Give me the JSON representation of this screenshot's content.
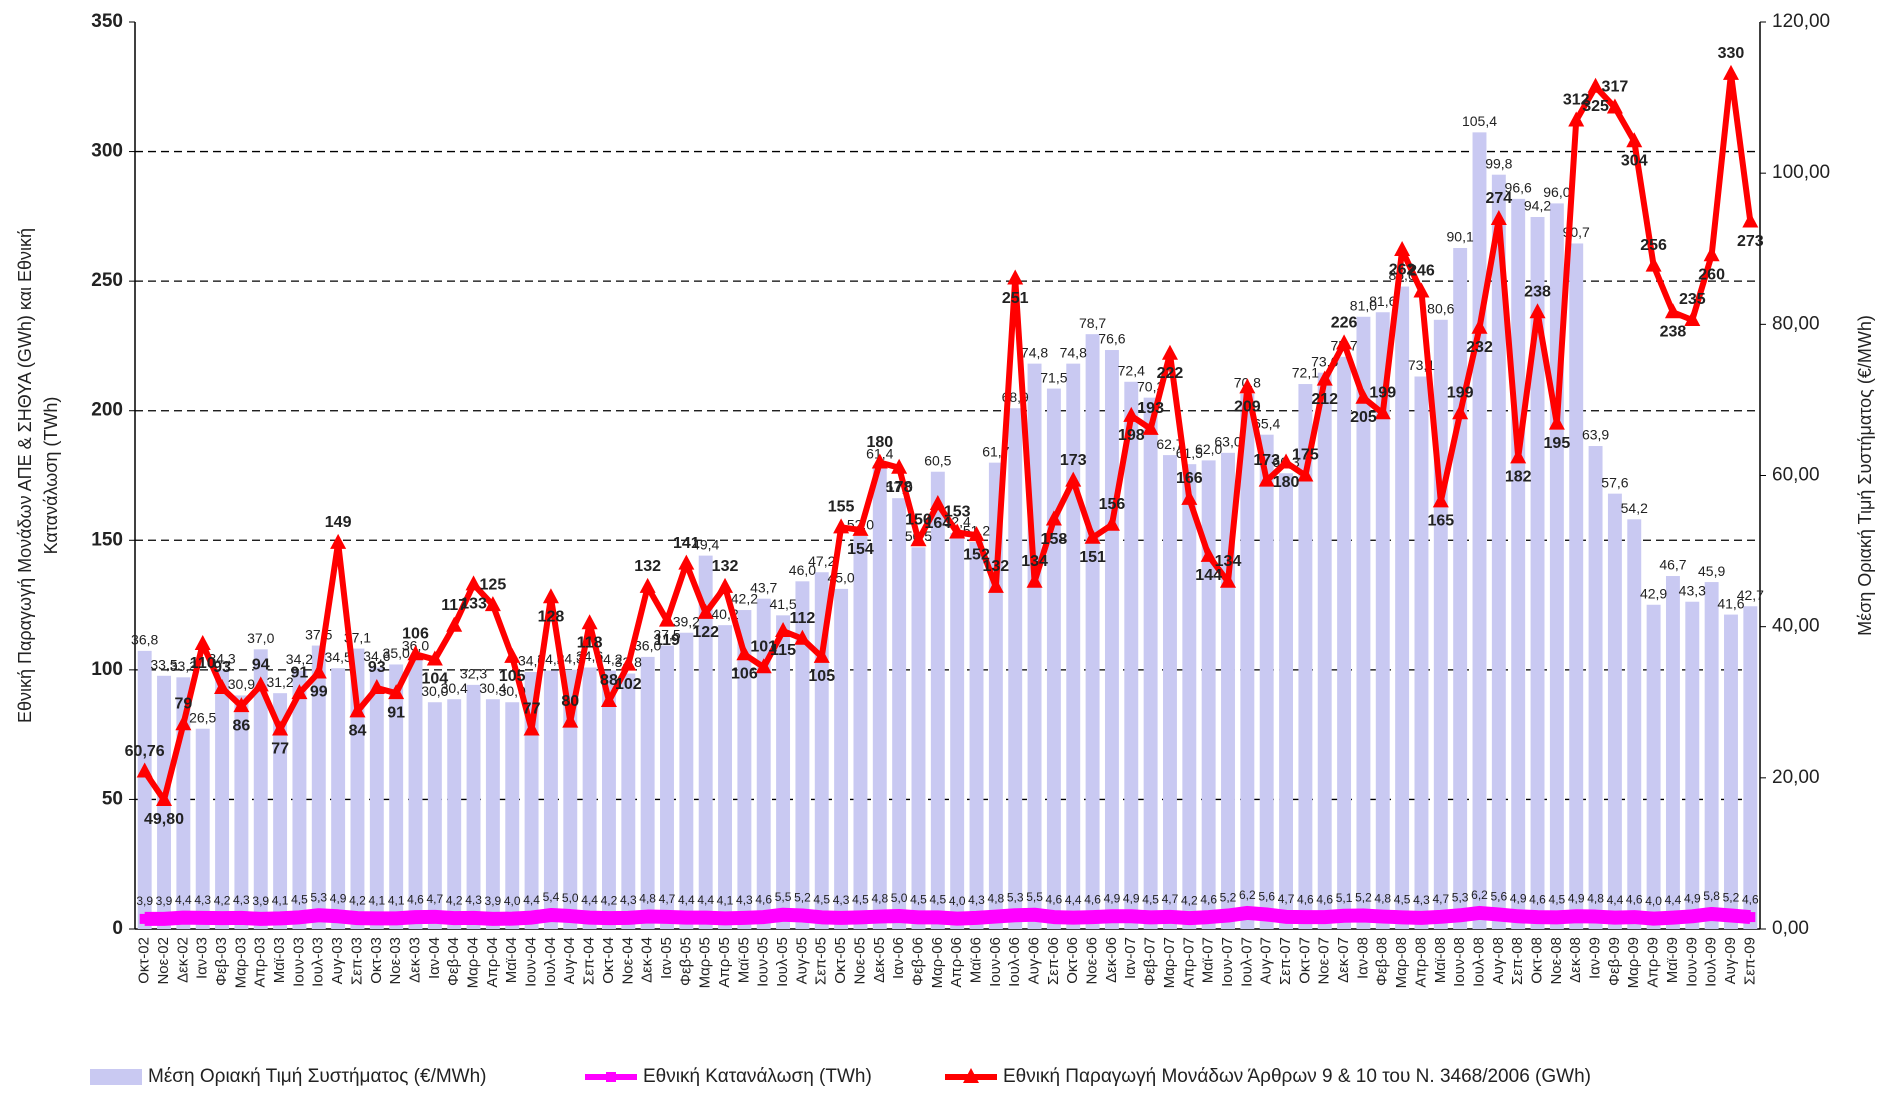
{
  "chart_data": {
    "type": "combo",
    "y_label": [
      "Εθνική Παραγωγή Μονάδων ΑΠΕ & ΣΗΘΥΑ (GWh) και Εθνική",
      "Κατανάλωση (TWh)"
    ],
    "y2_label": "Μέση Οριακή Τιμή Συστήματος (€/MWh)",
    "categories": [
      "Οκτ-02",
      "Νοε-02",
      "Δεκ-02",
      "Ιαν-03",
      "Φεβ-03",
      "Μαρ-03",
      "Απρ-03",
      "Μαϊ-03",
      "Ιουν-03",
      "Ιουλ-03",
      "Αυγ-03",
      "Σεπ-03",
      "Οκτ-03",
      "Νοε-03",
      "Δεκ-03",
      "Ιαν-04",
      "Φεβ-04",
      "Μαρ-04",
      "Απρ-04",
      "Μαϊ-04",
      "Ιουν-04",
      "Ιουλ-04",
      "Αυγ-04",
      "Σεπ-04",
      "Οκτ-04",
      "Νοε-04",
      "Δεκ-04",
      "Ιαν-05",
      "Φεβ-05",
      "Μαρ-05",
      "Απρ-05",
      "Μαϊ-05",
      "Ιουν-05",
      "Ιουλ-05",
      "Αυγ-05",
      "Σεπ-05",
      "Οκτ-05",
      "Νοε-05",
      "Δεκ-05",
      "Ιαν-06",
      "Φεβ-06",
      "Μαρ-06",
      "Απρ-06",
      "Μαϊ-06",
      "Ιουν-06",
      "Ιουλ-06",
      "Αυγ-06",
      "Σεπ-06",
      "Οκτ-06",
      "Νοε-06",
      "Δεκ-06",
      "Ιαν-07",
      "Φεβ-07",
      "Μαρ-07",
      "Απρ-07",
      "Μαϊ-07",
      "Ιουν-07",
      "Ιουλ-07",
      "Αυγ-07",
      "Σεπ-07",
      "Οκτ-07",
      "Νοε-07",
      "Δεκ-07",
      "Ιαν-08",
      "Φεβ-08",
      "Μαρ-08",
      "Απρ-08",
      "Μαϊ-08",
      "Ιουν-08",
      "Ιουλ-08",
      "Αυγ-08",
      "Σεπ-08",
      "Οκτ-08",
      "Νοε-08",
      "Δεκ-08",
      "Ιαν-09",
      "Φεβ-09",
      "Μαρ-09",
      "Απρ-09",
      "Μαϊ-09",
      "Ιουν-09",
      "Ιουλ-09",
      "Αυγ-09",
      "Σεπ-09"
    ],
    "series": [
      {
        "name": "Μέση Οριακή Τιμή Συστήματος (€/MWh)",
        "type": "bar",
        "axis": "y2",
        "color": "#c9c9f2",
        "values": [
          36.8,
          33.5,
          33.3,
          26.5,
          34.3,
          30.9,
          37.0,
          31.2,
          34.2,
          37.5,
          34.5,
          37.1,
          34.6,
          35.0,
          36.0,
          30.0,
          30.4,
          32.3,
          30.4,
          30.0,
          34.0,
          34.2,
          34.3,
          34.6,
          34.2,
          33.8,
          36.0,
          37.5,
          39.2,
          49.4,
          40.2,
          42.2,
          43.7,
          41.5,
          46.0,
          47.2,
          45.0,
          52.0,
          61.4,
          57.0,
          50.5,
          60.5,
          52.4,
          51.2,
          61.7,
          68.9,
          74.8,
          71.5,
          74.8,
          78.7,
          76.6,
          72.4,
          70.3,
          62.7,
          61.5,
          62.0,
          63.0,
          70.8,
          65.4,
          60.3,
          72.1,
          73.6,
          75.7,
          81.0,
          81.6,
          85.0,
          73.1,
          80.6,
          90.1,
          105.4,
          99.8,
          96.6,
          94.2,
          96.0,
          90.7,
          63.9,
          57.6,
          54.2,
          42.9,
          46.7,
          43.3,
          45.9,
          41.6,
          42.7
        ],
        "value_labels": [
          "36,8",
          "33,5",
          "33,3",
          "26,5",
          "34,3",
          "30,9",
          "37,0",
          "31,2",
          "34,2",
          "37,5",
          "34,5",
          "37,1",
          "34,6",
          "35,0",
          "36,0",
          "30,0",
          "30,4",
          "32,3",
          "30,4",
          "30,0",
          "34,0",
          "34,2",
          "34,3",
          "34,6",
          "34,2",
          "33,8",
          "36,0",
          "37,5",
          "39,2",
          "49,4",
          "40,2",
          "42,2",
          "43,7",
          "41,5",
          "46,0",
          "47,2",
          "45,0",
          "52,0",
          "61,4",
          "57,0",
          "50,5",
          "60,5",
          "52,4",
          "51,2",
          "61,7",
          "68,9",
          "74,8",
          "71,5",
          "74,8",
          "78,7",
          "76,6",
          "72,4",
          "70,3",
          "62,7",
          "61,5",
          "62,0",
          "63,0",
          "70,8",
          "65,4",
          "60,3",
          "72,1",
          "73,6",
          "75,7",
          "81,0",
          "81,6",
          "85,0",
          "73,1",
          "80,6",
          "90,1",
          "105,4",
          "99,8",
          "96,6",
          "94,2",
          "96,0",
          "90,7",
          "63,9",
          "57,6",
          "54,2",
          "42,9",
          "46,7",
          "43,3",
          "45,9",
          "41,6",
          "42,7"
        ]
      },
      {
        "name": "Εθνική Κατανάλωση (TWh)",
        "type": "line",
        "marker": "square",
        "color": "#ff00ff",
        "values": [
          3.9,
          3.9,
          4.4,
          4.3,
          4.2,
          4.3,
          3.9,
          4.1,
          4.5,
          5.3,
          4.9,
          4.2,
          4.1,
          4.1,
          4.6,
          4.7,
          4.2,
          4.3,
          3.9,
          4.0,
          4.4,
          5.4,
          5.0,
          4.4,
          4.2,
          4.3,
          4.8,
          4.7,
          4.4,
          4.4,
          4.1,
          4.3,
          4.6,
          5.5,
          5.2,
          4.5,
          4.3,
          4.5,
          4.8,
          5.0,
          4.5,
          4.5,
          4.0,
          4.3,
          4.8,
          5.3,
          5.5,
          4.6,
          4.4,
          4.6,
          4.9,
          4.9,
          4.5,
          4.7,
          4.2,
          4.6,
          5.2,
          6.2,
          5.6,
          4.7,
          4.6,
          4.6,
          5.1,
          5.2,
          4.8,
          4.5,
          4.3,
          4.7,
          5.3,
          6.2,
          5.6,
          4.9,
          4.6,
          4.5,
          4.9,
          4.8,
          4.4,
          4.6,
          4.0,
          4.4,
          4.9,
          5.8,
          5.2,
          4.6
        ],
        "value_labels": [
          "3,9",
          "3,9",
          "4,4",
          "4,3",
          "4,2",
          "4,3",
          "3,9",
          "4,1",
          "4,5",
          "5,3",
          "4,9",
          "4,2",
          "4,1",
          "4,1",
          "4,6",
          "4,7",
          "4,2",
          "4,3",
          "3,9",
          "4,0",
          "4,4",
          "5,4",
          "5,0",
          "4,4",
          "4,2",
          "4,3",
          "4,8",
          "4,7",
          "4,4",
          "4,4",
          "4,1",
          "4,3",
          "4,6",
          "5,5",
          "5,2",
          "4,5",
          "4,3",
          "4,5",
          "4,8",
          "5,0",
          "4,5",
          "4,5",
          "4,0",
          "4,3",
          "4,8",
          "5,3",
          "5,5",
          "4,6",
          "4,4",
          "4,6",
          "4,9",
          "4,9",
          "4,5",
          "4,7",
          "4,2",
          "4,6",
          "5,2",
          "6,2",
          "5,6",
          "4,7",
          "4,6",
          "4,6",
          "5,1",
          "5,2",
          "4,8",
          "4,5",
          "4,3",
          "4,7",
          "5,3",
          "6,2",
          "5,6",
          "4,9",
          "4,6",
          "4,5",
          "4,9",
          "4,8",
          "4,4",
          "4,6",
          "4,0",
          "4,4",
          "4,9",
          "5,8",
          "5,2",
          "4,6"
        ]
      },
      {
        "name": "Εθνική Παραγωγή Μονάδων Άρθρων 9 & 10 του Ν. 3468/2006 (GWh)",
        "type": "line",
        "marker": "triangle",
        "color": "#ff0000",
        "values": [
          60.76,
          49.8,
          79,
          110,
          93,
          86,
          94,
          77,
          91,
          99,
          149,
          84,
          93,
          91,
          106,
          104,
          117,
          133,
          125,
          105,
          77,
          128,
          80,
          118,
          88,
          102,
          132,
          119,
          141,
          122,
          132,
          106,
          101,
          115,
          112,
          105,
          155,
          154,
          180,
          178,
          150,
          164,
          153,
          152,
          132,
          251,
          134,
          158,
          173,
          151,
          156,
          198,
          193,
          222,
          166,
          144,
          134,
          209,
          173,
          180,
          175,
          212,
          226,
          205,
          199,
          262,
          246,
          165,
          199,
          232,
          274,
          182,
          238,
          195,
          312,
          325,
          317,
          304,
          256,
          238,
          235,
          260,
          330,
          273
        ],
        "value_labels": [
          "60,76",
          "49,80",
          "79",
          "110",
          "93",
          "86",
          "94",
          "77",
          "91",
          "99",
          "149",
          "84",
          "93",
          "91",
          "106",
          "104",
          "117",
          "133",
          "125",
          "105",
          "77",
          "128",
          "80",
          "118",
          "88",
          "102",
          "132",
          "119",
          "141",
          "122",
          "132",
          "106",
          "101",
          "115",
          "112",
          "105",
          "155",
          "154",
          "180",
          "178",
          "150",
          "164",
          "153",
          "152",
          "132",
          "251",
          "134",
          "158",
          "173",
          "151",
          "156",
          "198",
          "193",
          "222",
          "166",
          "144",
          "134",
          "209",
          "173",
          "180",
          "175",
          "212",
          "226",
          "205",
          "199",
          "262",
          "246",
          "165",
          "199",
          "232",
          "274",
          "182",
          "238",
          "195",
          "312",
          "325",
          "317",
          "304",
          "256",
          "238",
          "235",
          "260",
          "330",
          "273"
        ]
      }
    ],
    "ylim": [
      0,
      350
    ],
    "yticks": [
      0,
      50,
      100,
      150,
      200,
      250,
      300,
      350
    ],
    "y2lim": [
      0,
      120
    ],
    "y2ticks": [
      {
        "value": 0,
        "label": "0,00"
      },
      {
        "value": 20,
        "label": "20,00"
      },
      {
        "value": 40,
        "label": "40,00"
      },
      {
        "value": 60,
        "label": "60,00"
      },
      {
        "value": 80,
        "label": "80,00"
      },
      {
        "value": 100,
        "label": "100,00"
      },
      {
        "value": 120,
        "label": "120,00"
      }
    ],
    "grid": true,
    "legend": "bottom"
  }
}
